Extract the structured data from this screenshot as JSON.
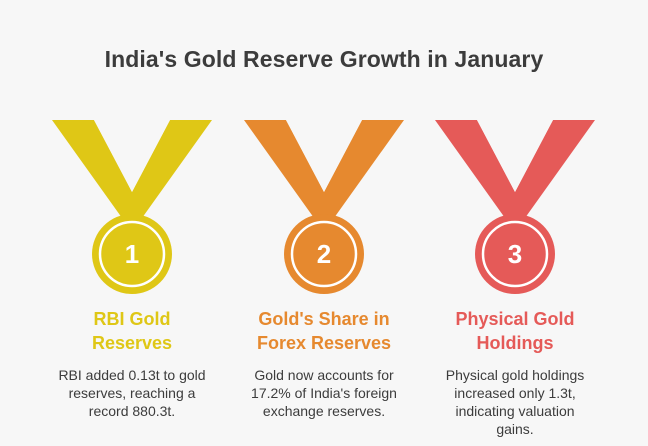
{
  "title": "India's Gold Reserve Growth in January",
  "items": [
    {
      "number": "1",
      "heading_line1": "RBI Gold",
      "heading_line2": "Reserves",
      "description": "RBI added 0.13t to gold reserves, reaching a record 880.3t.",
      "color": "#dfc716",
      "color_dark": "#bda80d"
    },
    {
      "number": "2",
      "heading_line1": "Gold's Share in",
      "heading_line2": "Forex Reserves",
      "description": "Gold now accounts for 17.2% of India's foreign exchange reserves.",
      "color": "#e6892f",
      "color_dark": "#c56f1c"
    },
    {
      "number": "3",
      "heading_line1": "Physical Gold",
      "heading_line2": "Holdings",
      "description": "Physical gold holdings increased only 1.3t, indicating valuation gains.",
      "color": "#e55a58",
      "color_dark": "#c84442"
    }
  ]
}
